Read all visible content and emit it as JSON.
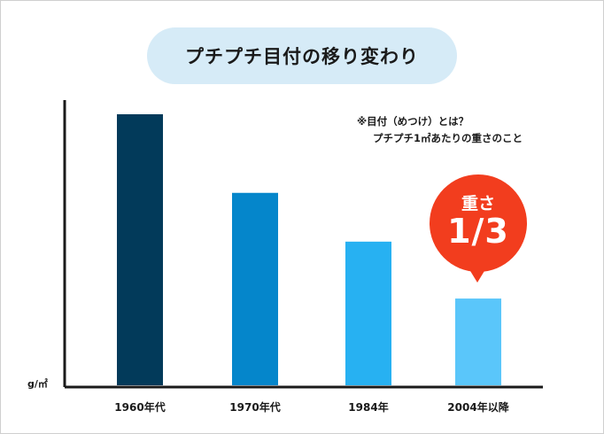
{
  "title": "プチプチ目付の移り変わり",
  "note": {
    "line1": "※目付（めつけ）とは？",
    "line2": "プチプチ1㎡あたりの重さのこと"
  },
  "callout": {
    "line1": "重さ",
    "line2": "1/3",
    "color": "#f23d1e"
  },
  "chart_data": {
    "type": "bar",
    "ylabel": "g/㎡",
    "categories": [
      "1960年代",
      "1970年代",
      "1984年",
      "2004年以降"
    ],
    "values": [
      100,
      71,
      53,
      32
    ],
    "ylim": [
      0,
      105
    ],
    "grid": false,
    "colors": [
      "#023a5a",
      "#0586cb",
      "#27b1f2",
      "#5ac6fa"
    ]
  }
}
